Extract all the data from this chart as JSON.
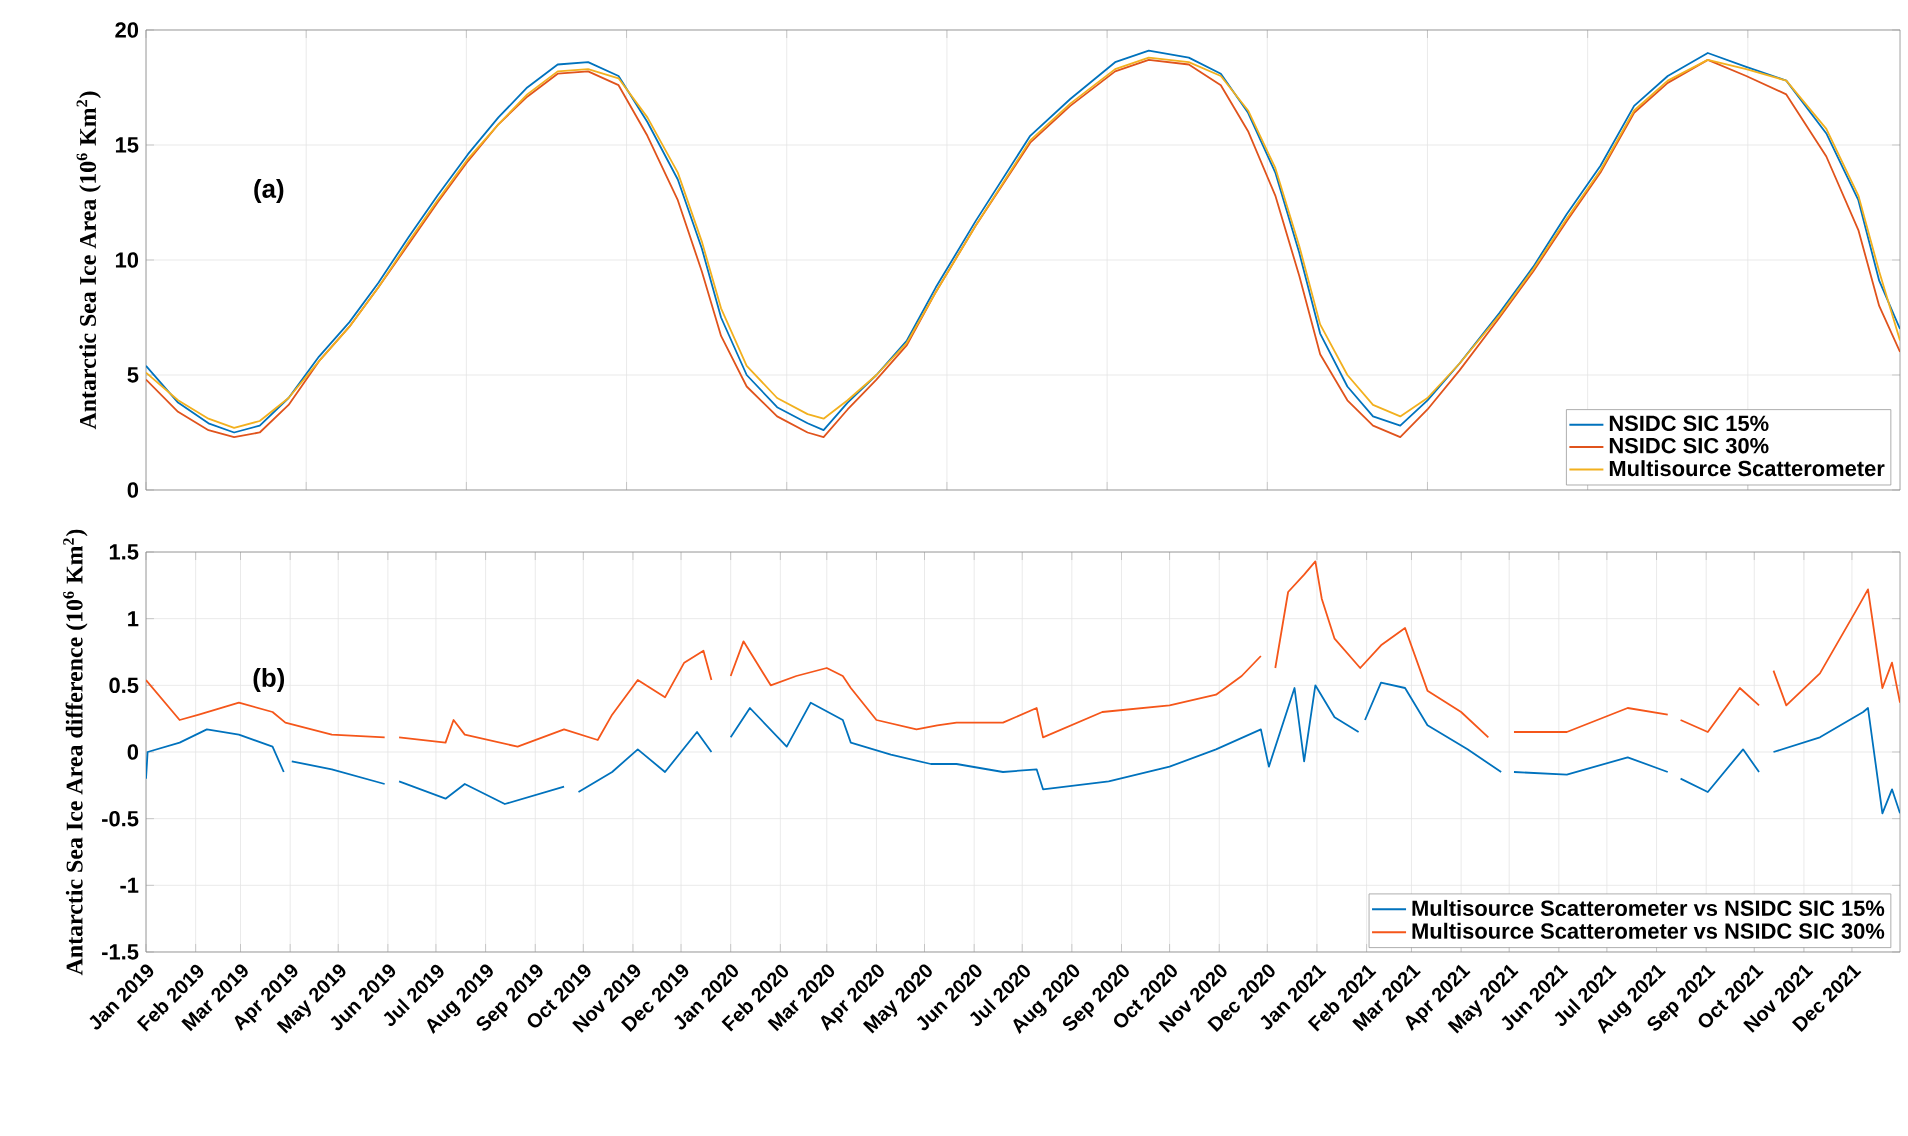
{
  "chart_data": [
    {
      "type": "line",
      "ylabel": "Antarctic Sea Ice Area (10$^{6}$ Km$^{2}$)",
      "annotations": [
        "(a)"
      ],
      "x": [
        "2019-01-01",
        "2019-01-21",
        "2019-02-09",
        "2019-02-25",
        "2019-03-13",
        "2019-03-31",
        "2019-04-19",
        "2019-05-08",
        "2019-05-26",
        "2019-06-14",
        "2019-07-02",
        "2019-07-21",
        "2019-08-09",
        "2019-08-27",
        "2019-09-15",
        "2019-10-04",
        "2019-10-23",
        "2019-11-10",
        "2019-11-29",
        "2019-12-14",
        "2019-12-26",
        "2020-01-11",
        "2020-01-30",
        "2020-02-18",
        "2020-02-28",
        "2020-03-14",
        "2020-04-01",
        "2020-04-20",
        "2020-05-08",
        "2020-06-02",
        "2020-07-06",
        "2020-07-31",
        "2020-08-28",
        "2020-09-18",
        "2020-10-13",
        "2020-11-02",
        "2020-11-19",
        "2020-12-06",
        "2020-12-21",
        "2021-01-03",
        "2021-01-20",
        "2021-02-05",
        "2021-02-22",
        "2021-03-11",
        "2021-03-31",
        "2021-04-25",
        "2021-05-16",
        "2021-06-06",
        "2021-06-27",
        "2021-07-18",
        "2021-08-08",
        "2021-09-02",
        "2021-09-26",
        "2021-10-21",
        "2021-11-15",
        "2021-12-05",
        "2021-12-18",
        "2021-12-31"
      ],
      "series": [
        {
          "name": "NSIDC SIC 15%",
          "color": "#0072bd",
          "values": [
            5.4,
            3.8,
            2.9,
            2.5,
            2.8,
            4.0,
            5.8,
            7.3,
            9.0,
            11.0,
            12.8,
            14.6,
            16.2,
            17.5,
            18.5,
            18.6,
            18.0,
            16.0,
            13.5,
            10.5,
            7.5,
            5.0,
            3.6,
            2.9,
            2.6,
            3.8,
            5.0,
            6.5,
            8.8,
            11.7,
            15.4,
            17.0,
            18.6,
            19.1,
            18.8,
            18.1,
            16.4,
            13.8,
            10.3,
            6.8,
            4.5,
            3.2,
            2.8,
            3.9,
            5.5,
            7.7,
            9.7,
            12.0,
            14.1,
            16.7,
            18.0,
            19.0,
            18.4,
            17.8,
            15.5,
            12.6,
            9.1,
            7.0
          ]
        },
        {
          "name": "NSIDC SIC 30%",
          "color": "#e0531c",
          "values": [
            4.8,
            3.4,
            2.6,
            2.3,
            2.5,
            3.7,
            5.6,
            7.1,
            8.8,
            10.7,
            12.5,
            14.3,
            15.9,
            17.1,
            18.1,
            18.2,
            17.6,
            15.4,
            12.6,
            9.5,
            6.7,
            4.5,
            3.2,
            2.5,
            2.3,
            3.5,
            4.8,
            6.3,
            8.6,
            11.5,
            15.1,
            16.7,
            18.2,
            18.7,
            18.5,
            17.6,
            15.6,
            12.8,
            9.3,
            5.9,
            3.9,
            2.8,
            2.3,
            3.5,
            5.2,
            7.5,
            9.5,
            11.7,
            13.8,
            16.4,
            17.7,
            18.7,
            18.0,
            17.2,
            14.5,
            11.3,
            8.0,
            6.0
          ]
        },
        {
          "name": "Multisource Scatterometer",
          "color": "#f2b01e",
          "values": [
            5.1,
            3.9,
            3.1,
            2.7,
            3.0,
            4.0,
            5.6,
            7.1,
            8.8,
            10.8,
            12.6,
            14.4,
            15.9,
            17.2,
            18.2,
            18.3,
            17.9,
            16.2,
            13.8,
            10.8,
            7.9,
            5.4,
            4.0,
            3.3,
            3.1,
            3.9,
            5.0,
            6.4,
            8.6,
            11.5,
            15.2,
            16.8,
            18.3,
            18.8,
            18.6,
            18.0,
            16.5,
            14.0,
            10.6,
            7.2,
            5.0,
            3.7,
            3.2,
            4.0,
            5.5,
            7.6,
            9.6,
            11.8,
            13.9,
            16.5,
            17.8,
            18.7,
            18.3,
            17.8,
            15.7,
            12.8,
            9.5,
            6.5
          ]
        }
      ],
      "xlim": [
        "2019-01-01",
        "2021-12-31"
      ],
      "ylim": [
        0,
        20
      ],
      "yticks": [
        0,
        5,
        10,
        15,
        20
      ],
      "xticks": [
        {
          "value": "2019-01-01",
          "label": null
        },
        {
          "value": "2019-04-11",
          "label": null
        },
        {
          "value": "2019-07-20",
          "label": null
        },
        {
          "value": "2019-10-28",
          "label": null
        },
        {
          "value": "2020-02-05",
          "label": null
        },
        {
          "value": "2020-05-15",
          "label": null
        },
        {
          "value": "2020-08-23",
          "label": null
        },
        {
          "value": "2020-12-01",
          "label": null
        },
        {
          "value": "2021-03-11",
          "label": null
        },
        {
          "value": "2021-06-19",
          "label": null
        },
        {
          "value": "2021-09-27",
          "label": null
        }
      ],
      "tick_labels": "y",
      "grid": true,
      "legend": "bottom right"
    },
    {
      "type": "line",
      "ylabel": "Antarctic Sea Ice Area difference (10$^{6}$ Km$^{2}$)",
      "annotations": [
        "(b)"
      ],
      "series": [
        {
          "name": "Multisource Scatterometer vs NSIDC SIC 15%",
          "color": "#0072bd",
          "x": [
            "2019-01-01",
            "2019-01-02",
            "2019-01-22",
            "2019-02-08",
            "2019-02-28",
            "2019-03-21",
            "2019-03-28",
            "2019-03-30",
            "2019-04-02",
            "2019-04-27",
            "2019-05-30",
            "2019-06-03",
            "2019-06-08",
            "2019-07-07",
            "2019-07-19",
            "2019-08-13",
            "2019-09-19",
            "2019-09-23",
            "2019-09-28",
            "2019-10-19",
            "2019-11-04",
            "2019-11-21",
            "2019-12-11",
            "2019-12-20",
            "2019-12-26",
            "2020-01-01",
            "2020-01-13",
            "2020-02-05",
            "2020-02-20",
            "2020-03-11",
            "2020-03-16",
            "2020-04-10",
            "2020-05-05",
            "2020-05-21",
            "2020-06-19",
            "2020-07-10",
            "2020-07-14",
            "2020-08-24",
            "2020-10-01",
            "2020-10-30",
            "2020-11-27",
            "2020-12-02",
            "2020-12-18",
            "2020-12-24",
            "2020-12-31",
            "2021-01-12",
            "2021-01-27",
            "2021-01-29",
            "2021-01-31",
            "2021-02-10",
            "2021-02-25",
            "2021-03-11",
            "2021-04-05",
            "2021-04-26",
            "2021-04-30",
            "2021-05-04",
            "2021-06-06",
            "2021-07-14",
            "2021-08-08",
            "2021-08-12",
            "2021-08-16",
            "2021-09-02",
            "2021-09-24",
            "2021-10-04",
            "2021-10-08",
            "2021-10-13",
            "2021-11-11",
            "2021-12-08",
            "2021-12-11",
            "2021-12-20",
            "2021-12-26",
            "2021-12-31"
          ],
          "values": [
            -0.2,
            0,
            0.07,
            0.17,
            0.13,
            0.04,
            -0.15,
            null,
            -0.07,
            -0.13,
            -0.24,
            null,
            -0.22,
            -0.35,
            -0.24,
            -0.39,
            -0.26,
            null,
            -0.3,
            -0.15,
            0.02,
            -0.15,
            0.15,
            0,
            null,
            0.11,
            0.33,
            0.04,
            0.37,
            0.24,
            0.07,
            -0.02,
            -0.09,
            -0.09,
            -0.15,
            -0.13,
            -0.28,
            -0.22,
            -0.11,
            0.02,
            0.17,
            -0.11,
            0.48,
            -0.07,
            0.5,
            0.26,
            0.15,
            null,
            0.24,
            0.52,
            0.48,
            0.2,
            0.02,
            -0.15,
            null,
            -0.15,
            -0.17,
            -0.04,
            -0.15,
            null,
            -0.2,
            -0.3,
            0.02,
            -0.15,
            null,
            0,
            0.11,
            0.3,
            0.33,
            -0.46,
            -0.28,
            -0.46
          ]
        },
        {
          "name": "Multisource Scatterometer vs NSIDC SIC 30%",
          "color": "#f5561a",
          "x": [
            "2019-01-01",
            "2019-01-22",
            "2019-02-03",
            "2019-02-28",
            "2019-03-21",
            "2019-03-29",
            "2019-04-27",
            "2019-05-30",
            "2019-06-03",
            "2019-06-08",
            "2019-07-07",
            "2019-07-12",
            "2019-07-19",
            "2019-08-21",
            "2019-09-19",
            "2019-10-10",
            "2019-10-19",
            "2019-11-04",
            "2019-11-21",
            "2019-12-03",
            "2019-12-15",
            "2019-12-20",
            "2019-12-26",
            "2020-01-01",
            "2020-01-09",
            "2020-01-26",
            "2020-02-11",
            "2020-03-01",
            "2020-03-11",
            "2020-03-16",
            "2020-04-01",
            "2020-04-26",
            "2020-05-09",
            "2020-05-21",
            "2020-06-19",
            "2020-07-10",
            "2020-07-14",
            "2020-08-20",
            "2020-10-01",
            "2020-10-30",
            "2020-11-15",
            "2020-11-27",
            "2020-12-01",
            "2020-12-06",
            "2020-12-14",
            "2020-12-24",
            "2020-12-31",
            "2021-01-04",
            "2021-01-12",
            "2021-01-28",
            "2021-02-10",
            "2021-02-25",
            "2021-03-11",
            "2021-04-01",
            "2021-04-18",
            "2021-04-26",
            "2021-05-04",
            "2021-06-06",
            "2021-07-14",
            "2021-08-08",
            "2021-08-12",
            "2021-08-16",
            "2021-09-02",
            "2021-09-22",
            "2021-10-04",
            "2021-10-08",
            "2021-10-13",
            "2021-10-21",
            "2021-11-11",
            "2021-12-04",
            "2021-12-11",
            "2021-12-20",
            "2021-12-26",
            "2021-12-31"
          ],
          "values": [
            0.54,
            0.24,
            0.28,
            0.37,
            0.3,
            0.22,
            0.13,
            0.11,
            null,
            0.11,
            0.07,
            0.24,
            0.13,
            0.04,
            0.17,
            0.09,
            0.28,
            0.54,
            0.41,
            0.67,
            0.76,
            0.54,
            null,
            0.57,
            0.83,
            0.5,
            0.57,
            0.63,
            0.57,
            0.48,
            0.24,
            0.17,
            0.2,
            0.22,
            0.22,
            0.33,
            0.11,
            0.3,
            0.35,
            0.43,
            0.57,
            0.72,
            null,
            0.63,
            1.2,
            1.33,
            1.43,
            1.15,
            0.85,
            0.63,
            0.8,
            0.93,
            0.46,
            0.3,
            0.11,
            null,
            0.15,
            0.15,
            0.33,
            0.28,
            null,
            0.24,
            0.15,
            0.48,
            0.35,
            null,
            0.61,
            0.35,
            0.59,
            1.07,
            1.22,
            0.48,
            0.67,
            0.37
          ]
        }
      ],
      "xlim": [
        "2019-01-01",
        "2021-12-31"
      ],
      "ylim": [
        -1.5,
        1.5
      ],
      "yticks": [
        -1.5,
        -1,
        -0.5,
        0,
        0.5,
        1,
        1.5
      ],
      "xticks": [
        {
          "value": "2019-01-01",
          "label": "Jan 2019"
        },
        {
          "value": "2019-02-01",
          "label": "Feb 2019"
        },
        {
          "value": "2019-03-01",
          "label": "Mar 2019"
        },
        {
          "value": "2019-04-01",
          "label": "Apr 2019"
        },
        {
          "value": "2019-05-01",
          "label": "May 2019"
        },
        {
          "value": "2019-06-01",
          "label": "Jun 2019"
        },
        {
          "value": "2019-07-01",
          "label": "Jul 2019"
        },
        {
          "value": "2019-08-01",
          "label": "Aug 2019"
        },
        {
          "value": "2019-09-01",
          "label": "Sep 2019"
        },
        {
          "value": "2019-10-01",
          "label": "Oct 2019"
        },
        {
          "value": "2019-11-01",
          "label": "Nov 2019"
        },
        {
          "value": "2019-12-01",
          "label": "Dec 2019"
        },
        {
          "value": "2020-01-01",
          "label": "Jan 2020"
        },
        {
          "value": "2020-02-01",
          "label": "Feb 2020"
        },
        {
          "value": "2020-03-01",
          "label": "Mar 2020"
        },
        {
          "value": "2020-04-01",
          "label": "Apr 2020"
        },
        {
          "value": "2020-05-01",
          "label": "May 2020"
        },
        {
          "value": "2020-06-01",
          "label": "Jun 2020"
        },
        {
          "value": "2020-07-01",
          "label": "Jul 2020"
        },
        {
          "value": "2020-08-01",
          "label": "Aug 2020"
        },
        {
          "value": "2020-09-01",
          "label": "Sep 2020"
        },
        {
          "value": "2020-10-01",
          "label": "Oct 2020"
        },
        {
          "value": "2020-11-01",
          "label": "Nov 2020"
        },
        {
          "value": "2020-12-01",
          "label": "Dec 2020"
        },
        {
          "value": "2021-01-01",
          "label": "Jan 2021"
        },
        {
          "value": "2021-02-01",
          "label": "Feb 2021"
        },
        {
          "value": "2021-03-01",
          "label": "Mar 2021"
        },
        {
          "value": "2021-04-01",
          "label": "Apr 2021"
        },
        {
          "value": "2021-05-01",
          "label": "May 2021"
        },
        {
          "value": "2021-06-01",
          "label": "Jun 2021"
        },
        {
          "value": "2021-07-01",
          "label": "Jul 2021"
        },
        {
          "value": "2021-08-01",
          "label": "Aug 2021"
        },
        {
          "value": "2021-09-01",
          "label": "Sep 2021"
        },
        {
          "value": "2021-10-01",
          "label": "Oct 2021"
        },
        {
          "value": "2021-11-01",
          "label": "Nov 2021"
        },
        {
          "value": "2021-12-01",
          "label": "Dec 2021"
        }
      ],
      "grid": true,
      "legend": "bottom right"
    }
  ]
}
